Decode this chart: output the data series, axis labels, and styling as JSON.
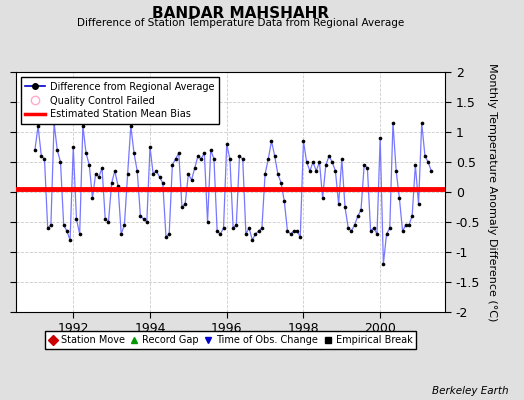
{
  "title": "BANDAR MAHSHAHR",
  "subtitle": "Difference of Station Temperature Data from Regional Average",
  "ylabel": "Monthly Temperature Anomaly Difference (°C)",
  "xlim": [
    1990.5,
    2001.7
  ],
  "ylim": [
    -2,
    2
  ],
  "yticks": [
    -2,
    -1.5,
    -1,
    -0.5,
    0,
    0.5,
    1,
    1.5,
    2
  ],
  "xticks": [
    1992,
    1994,
    1996,
    1998,
    2000
  ],
  "bias_value": 0.05,
  "background_color": "#e0e0e0",
  "plot_bg_color": "#ffffff",
  "line_color": "#7777ff",
  "marker_color": "#000000",
  "bias_color": "#ff0000",
  "grid_color": "#cccccc",
  "attribution": "Berkeley Earth",
  "data_x": [
    1991.0,
    1991.083,
    1991.167,
    1991.25,
    1991.333,
    1991.417,
    1991.5,
    1991.583,
    1991.667,
    1991.75,
    1991.833,
    1991.917,
    1992.0,
    1992.083,
    1992.167,
    1992.25,
    1992.333,
    1992.417,
    1992.5,
    1992.583,
    1992.667,
    1992.75,
    1992.833,
    1992.917,
    1993.0,
    1993.083,
    1993.167,
    1993.25,
    1993.333,
    1993.417,
    1993.5,
    1993.583,
    1993.667,
    1993.75,
    1993.833,
    1993.917,
    1994.0,
    1994.083,
    1994.167,
    1994.25,
    1994.333,
    1994.417,
    1994.5,
    1994.583,
    1994.667,
    1994.75,
    1994.833,
    1994.917,
    1995.0,
    1995.083,
    1995.167,
    1995.25,
    1995.333,
    1995.417,
    1995.5,
    1995.583,
    1995.667,
    1995.75,
    1995.833,
    1995.917,
    1996.0,
    1996.083,
    1996.167,
    1996.25,
    1996.333,
    1996.417,
    1996.5,
    1996.583,
    1996.667,
    1996.75,
    1996.833,
    1996.917,
    1997.0,
    1997.083,
    1997.167,
    1997.25,
    1997.333,
    1997.417,
    1997.5,
    1997.583,
    1997.667,
    1997.75,
    1997.833,
    1997.917,
    1998.0,
    1998.083,
    1998.167,
    1998.25,
    1998.333,
    1998.417,
    1998.5,
    1998.583,
    1998.667,
    1998.75,
    1998.833,
    1998.917,
    1999.0,
    1999.083,
    1999.167,
    1999.25,
    1999.333,
    1999.417,
    1999.5,
    1999.583,
    1999.667,
    1999.75,
    1999.833,
    1999.917,
    2000.0,
    2000.083,
    2000.167,
    2000.25,
    2000.333,
    2000.417,
    2000.5,
    2000.583,
    2000.667,
    2000.75,
    2000.833,
    2000.917,
    2001.0,
    2001.083,
    2001.167,
    2001.25,
    2001.333
  ],
  "data_y": [
    0.7,
    1.1,
    0.6,
    0.55,
    -0.6,
    -0.55,
    1.15,
    0.7,
    0.5,
    -0.55,
    -0.65,
    -0.8,
    0.75,
    -0.45,
    -0.7,
    1.1,
    0.65,
    0.45,
    -0.1,
    0.3,
    0.25,
    0.4,
    -0.45,
    -0.5,
    0.15,
    0.35,
    0.1,
    -0.7,
    -0.55,
    0.3,
    1.1,
    0.65,
    0.35,
    -0.4,
    -0.45,
    -0.5,
    0.75,
    0.3,
    0.35,
    0.25,
    0.15,
    -0.75,
    -0.7,
    0.45,
    0.55,
    0.65,
    -0.25,
    -0.2,
    0.3,
    0.2,
    0.4,
    0.6,
    0.55,
    0.65,
    -0.5,
    0.7,
    0.55,
    -0.65,
    -0.7,
    -0.6,
    0.8,
    0.55,
    -0.6,
    -0.55,
    0.6,
    0.55,
    -0.7,
    -0.6,
    -0.8,
    -0.7,
    -0.65,
    -0.6,
    0.3,
    0.55,
    0.85,
    0.6,
    0.3,
    0.15,
    -0.15,
    -0.65,
    -0.7,
    -0.65,
    -0.65,
    -0.75,
    0.85,
    0.5,
    0.35,
    0.5,
    0.35,
    0.5,
    -0.1,
    0.45,
    0.6,
    0.5,
    0.35,
    -0.2,
    0.55,
    -0.25,
    -0.6,
    -0.65,
    -0.55,
    -0.4,
    -0.3,
    0.45,
    0.4,
    -0.65,
    -0.6,
    -0.7,
    0.9,
    -1.2,
    -0.7,
    -0.6,
    1.15,
    0.35,
    -0.1,
    -0.65,
    -0.55,
    -0.55,
    -0.4,
    0.45,
    -0.2,
    1.15,
    0.6,
    0.5,
    0.35
  ]
}
